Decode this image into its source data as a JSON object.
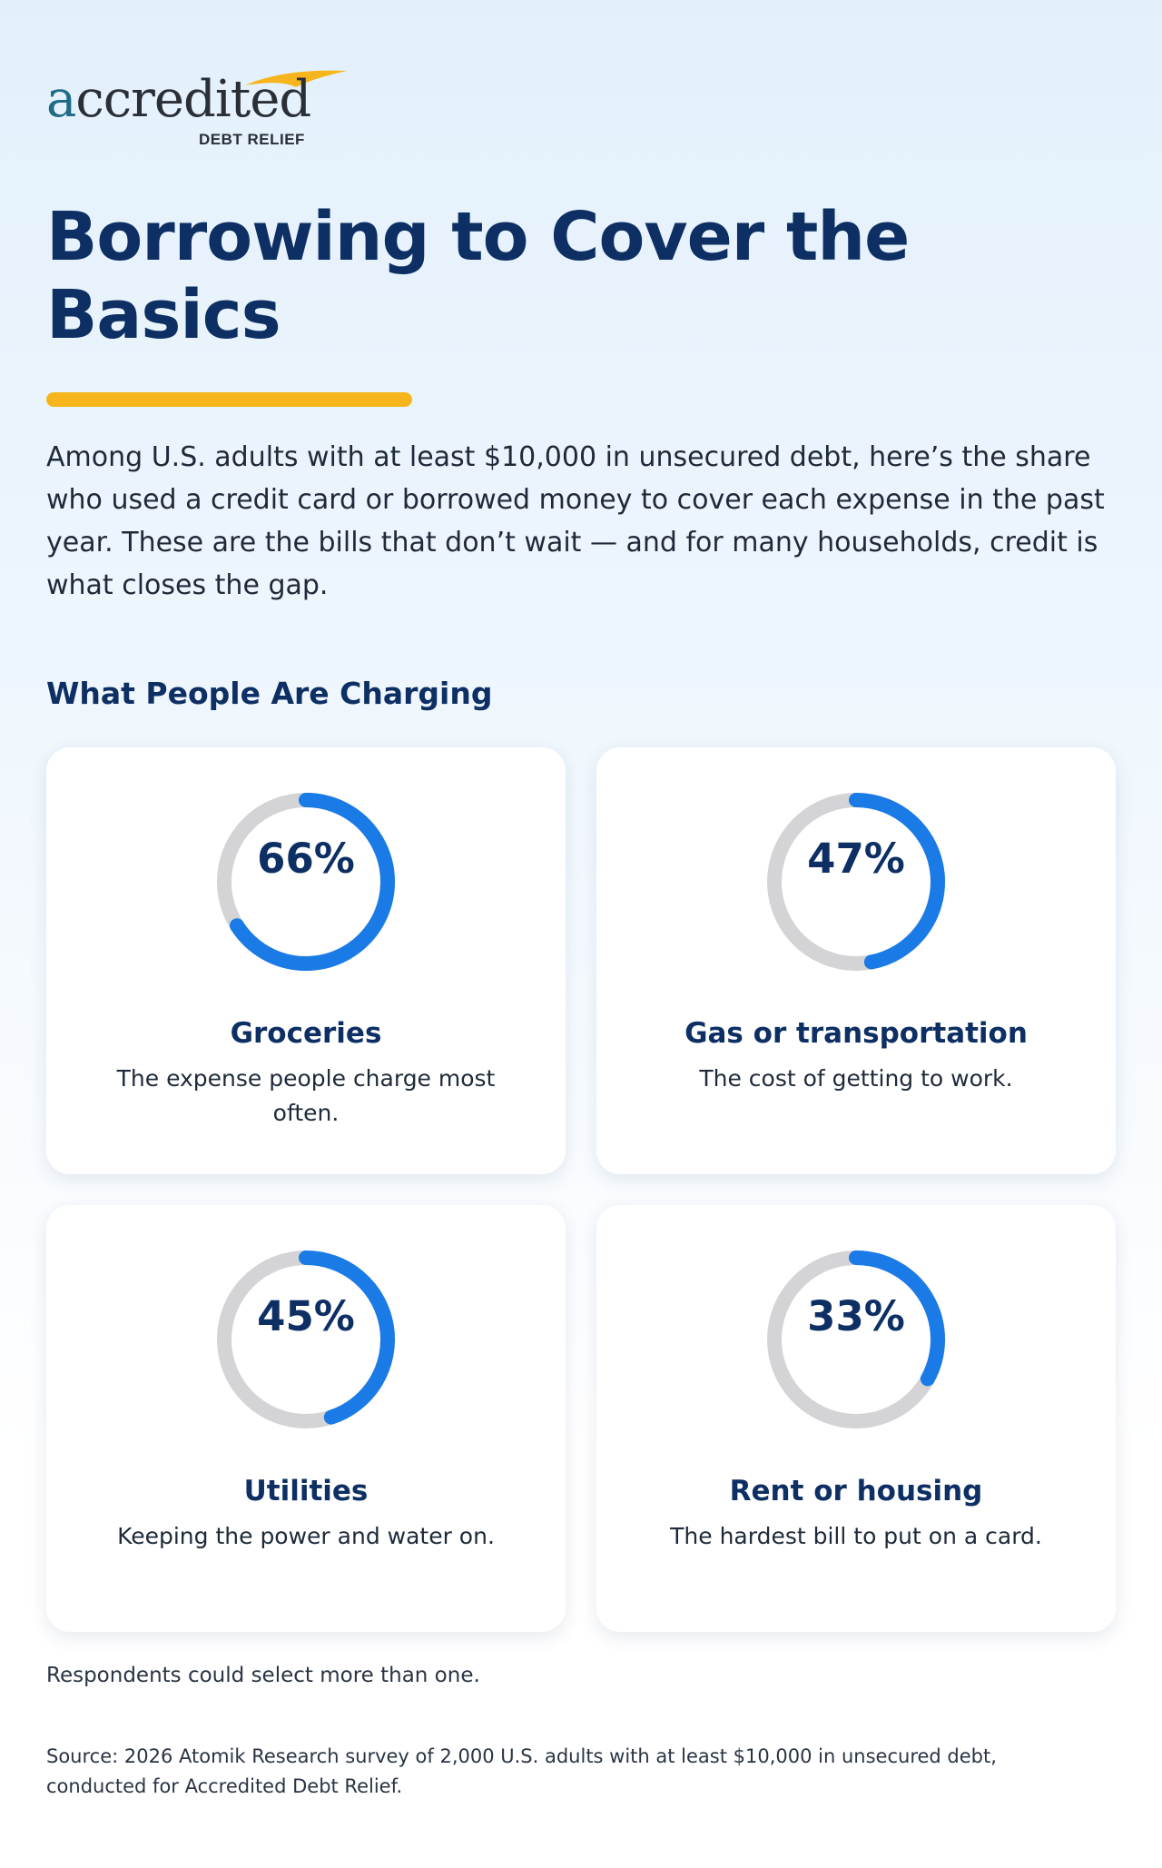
{
  "brand": {
    "name": "accredited",
    "name_first_letter": "a",
    "name_rest": "ccredited",
    "sub": "DEBT RELIEF",
    "teal": "#1f6b86",
    "gold": "#f6b51c"
  },
  "title": "Borrowing to Cover the Basics",
  "intro": "Among U.S. adults with at least $10,000 in unsecured debt, here’s the share who used a credit card or borrowed money to cover each expense in the past year. These are the bills that don’t wait — and for many households, credit is what closes the gap.",
  "section_heading": "What People Are Charging",
  "colors": {
    "navy": "#0d2f63",
    "accent_blue": "#1a7ae6",
    "track_gray": "#d4d4d6",
    "underline_gold": "#f6b51c"
  },
  "chart_data": {
    "type": "donut",
    "unit": "%",
    "max": 100,
    "items": [
      {
        "category": "Groceries",
        "value": 66,
        "value_label": "66%",
        "description": "The expense people charge most often."
      },
      {
        "category": "Gas or transportation",
        "value": 47,
        "value_label": "47%",
        "description": "The cost of getting to work."
      },
      {
        "category": "Utilities",
        "value": 45,
        "value_label": "45%",
        "description": "Keeping the power and water on."
      },
      {
        "category": "Rent or housing",
        "value": 33,
        "value_label": "33%",
        "description": "The hardest bill to put on a card."
      }
    ]
  },
  "footnote": "Respondents could select more than one.",
  "source": "Source: 2026 Atomik Research survey of 2,000 U.S. adults with at least $10,000 in unsecured debt, conducted for Accredited Debt Relief."
}
